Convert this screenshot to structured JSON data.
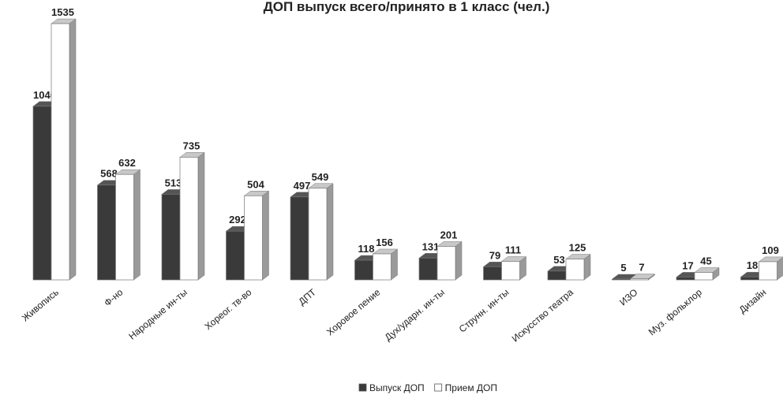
{
  "chart_data": {
    "type": "bar3d",
    "title": "ДОП выпуск всего/принято в 1 класс (чел.)",
    "categories": [
      "Живопись",
      "Ф-но",
      "Народные ин-ты",
      "Хореог. тв-во",
      "ДПТ",
      "Хоровое пение",
      "Дух/ударн. ин-ты",
      "Струнн. ин-ты",
      "Искусство театра",
      "ИЗО",
      "Муз. фольклор",
      "Дизайн"
    ],
    "series": [
      {
        "name": "Выпуск ДОП",
        "color": "#3a3a3a",
        "values": [
          1040,
          568,
          513,
          292,
          497,
          118,
          131,
          79,
          53,
          5,
          17,
          18
        ]
      },
      {
        "name": "Прием ДОП",
        "color": "#ffffff",
        "values": [
          1535,
          632,
          735,
          504,
          549,
          156,
          201,
          111,
          125,
          7,
          45,
          109
        ]
      }
    ],
    "legend": "bottom"
  }
}
